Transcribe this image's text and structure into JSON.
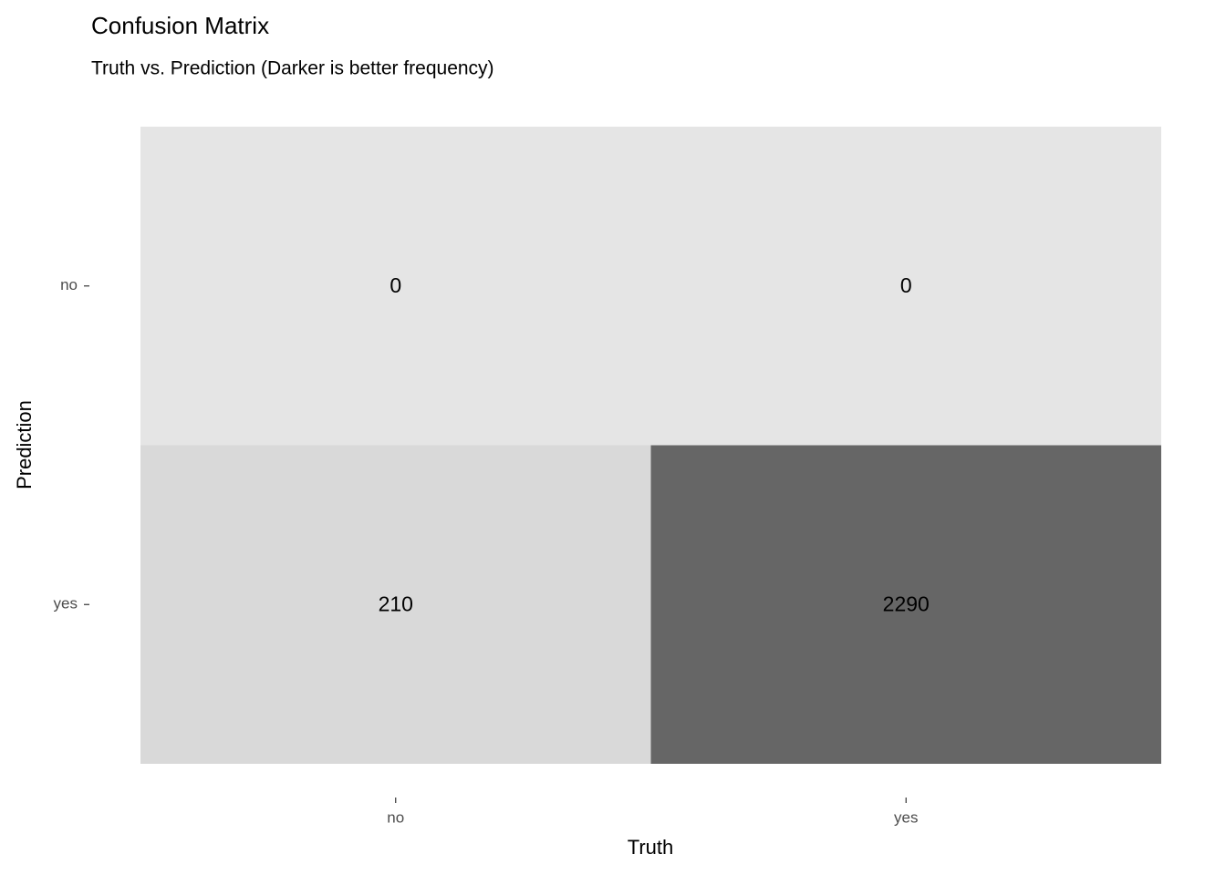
{
  "chart_data": {
    "type": "heatmap",
    "title": "Confusion Matrix",
    "subtitle": "Truth vs. Prediction (Darker is better frequency)",
    "x_label": "Truth",
    "y_label": "Prediction",
    "x_categories": [
      "no",
      "yes"
    ],
    "y_categories": [
      "no",
      "yes"
    ],
    "values": [
      [
        0,
        0
      ],
      [
        210,
        2290
      ]
    ],
    "low_color": "#e5e5e5",
    "high_color": "#666666"
  }
}
